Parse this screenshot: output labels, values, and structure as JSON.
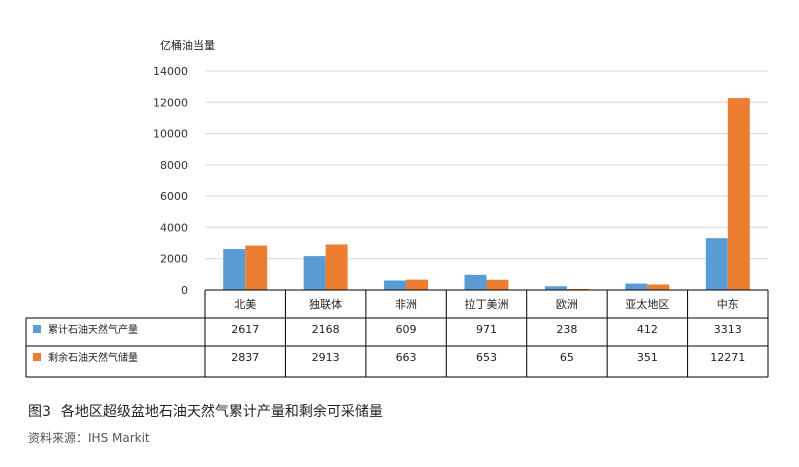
{
  "figure": {
    "number": "图3",
    "caption": "各地区超级盆地石油天然气累计产量和剩余可采储量",
    "source": "资料来源：IHS Markit"
  },
  "chart_data": {
    "type": "bar",
    "ylabel": "亿桶油当量",
    "ylim": [
      0,
      14000
    ],
    "yticks": [
      0,
      2000,
      4000,
      6000,
      8000,
      10000,
      12000,
      14000
    ],
    "grid": true,
    "categories": [
      "北美",
      "独联体",
      "非洲",
      "拉丁美洲",
      "欧洲",
      "亚太地区",
      "中东"
    ],
    "series": [
      {
        "name": "累计石油天然气产量",
        "color": "#5b9bd5",
        "values": [
          2617,
          2168,
          609,
          971,
          238,
          412,
          3313
        ]
      },
      {
        "name": "剩余石油天然气储量",
        "color": "#ed7d31",
        "values": [
          2837,
          2913,
          663,
          653,
          65,
          351,
          12271
        ]
      }
    ],
    "legend": "data-table",
    "data_table": true
  }
}
